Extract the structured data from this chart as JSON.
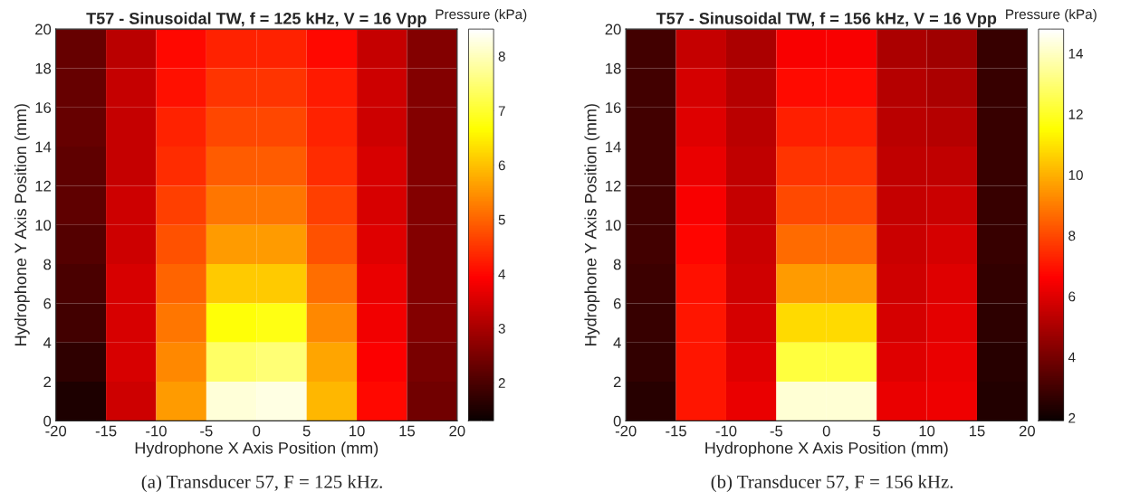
{
  "chart_data": [
    {
      "type": "heatmap",
      "title": "T57 - Sinusoidal TW, f = 125 kHz, V = 16 Vpp",
      "xlabel": "Hydrophone X Axis Position (mm)",
      "ylabel": "Hydrophone Y Axis Position (mm)",
      "clabel": "Pressure (kPa)",
      "x": [
        -17.5,
        -12.5,
        -7.5,
        -2.5,
        2.5,
        7.5,
        12.5,
        17.5
      ],
      "y": [
        19,
        17,
        15,
        13,
        11,
        9,
        7,
        5,
        3,
        1
      ],
      "cells": [
        [
          2.3,
          3.2,
          4.0,
          4.3,
          4.3,
          4.0,
          3.3,
          2.6
        ],
        [
          2.3,
          3.3,
          4.1,
          4.5,
          4.5,
          4.2,
          3.4,
          2.6
        ],
        [
          2.3,
          3.3,
          4.3,
          4.7,
          4.7,
          4.3,
          3.4,
          2.6
        ],
        [
          2.2,
          3.3,
          4.4,
          4.9,
          4.9,
          4.4,
          3.5,
          2.6
        ],
        [
          2.2,
          3.4,
          4.6,
          5.2,
          5.2,
          4.6,
          3.5,
          2.6
        ],
        [
          2.1,
          3.4,
          4.8,
          5.6,
          5.6,
          4.8,
          3.6,
          2.6
        ],
        [
          2.0,
          3.5,
          5.0,
          6.1,
          6.1,
          5.1,
          3.7,
          2.6
        ],
        [
          1.9,
          3.5,
          5.2,
          6.7,
          6.8,
          5.4,
          3.8,
          2.6
        ],
        [
          1.7,
          3.5,
          5.4,
          7.4,
          7.5,
          5.7,
          3.9,
          2.5
        ],
        [
          1.5,
          3.4,
          5.6,
          8.2,
          8.3,
          5.9,
          4.0,
          2.4
        ]
      ],
      "xlim": [
        -20,
        20
      ],
      "xticks": [
        -20,
        -15,
        -10,
        -5,
        0,
        5,
        10,
        15,
        20
      ],
      "ylim": [
        0,
        20
      ],
      "yticks": [
        0,
        2,
        4,
        6,
        8,
        10,
        12,
        14,
        16,
        18,
        20
      ],
      "clim": [
        1.3,
        8.5
      ],
      "cticks": [
        2,
        3,
        4,
        5,
        6,
        7,
        8
      ],
      "annotations": [
        "(a) Transducer 57, F = 125 kHz."
      ]
    },
    {
      "type": "heatmap",
      "title": "T57 - Sinusoidal TW, f = 156 kHz, V = 16 Vpp",
      "xlabel": "Hydrophone X Axis Position (mm)",
      "ylabel": "Hydrophone Y Axis Position (mm)",
      "clabel": "Pressure (kPa)",
      "x": [
        -17.5,
        -12.5,
        -7.5,
        -2.5,
        2.5,
        7.5,
        12.5,
        17.5
      ],
      "y": [
        19,
        17,
        15,
        13,
        11,
        9,
        7,
        5,
        3,
        1
      ],
      "cells": [
        [
          3.0,
          5.5,
          5.0,
          6.5,
          6.5,
          5.0,
          4.8,
          2.8
        ],
        [
          3.0,
          5.8,
          5.2,
          6.8,
          6.8,
          5.2,
          5.0,
          2.8
        ],
        [
          3.0,
          6.0,
          5.3,
          7.2,
          7.2,
          5.3,
          5.2,
          2.8
        ],
        [
          3.0,
          6.2,
          5.4,
          7.6,
          7.6,
          5.4,
          5.4,
          2.8
        ],
        [
          3.0,
          6.5,
          5.5,
          8.0,
          8.0,
          5.5,
          5.6,
          2.8
        ],
        [
          3.0,
          6.7,
          5.6,
          8.7,
          8.7,
          5.6,
          5.8,
          2.8
        ],
        [
          2.9,
          6.9,
          5.7,
          9.6,
          9.6,
          5.7,
          6.0,
          2.7
        ],
        [
          2.8,
          7.0,
          5.8,
          10.8,
          10.8,
          5.8,
          6.1,
          2.6
        ],
        [
          2.7,
          7.0,
          6.0,
          12.3,
          12.3,
          6.0,
          6.2,
          2.5
        ],
        [
          2.5,
          7.0,
          6.2,
          14.2,
          14.2,
          6.2,
          6.3,
          2.4
        ]
      ],
      "xlim": [
        -20,
        20
      ],
      "xticks": [
        -20,
        -15,
        -10,
        -5,
        0,
        5,
        10,
        15,
        20
      ],
      "ylim": [
        0,
        20
      ],
      "yticks": [
        0,
        2,
        4,
        6,
        8,
        10,
        12,
        14,
        16,
        18,
        20
      ],
      "clim": [
        1.9,
        14.8
      ],
      "cticks": [
        2,
        4,
        6,
        8,
        10,
        12,
        14
      ],
      "annotations": [
        "(b) Transducer 57, F = 156 kHz."
      ]
    }
  ]
}
